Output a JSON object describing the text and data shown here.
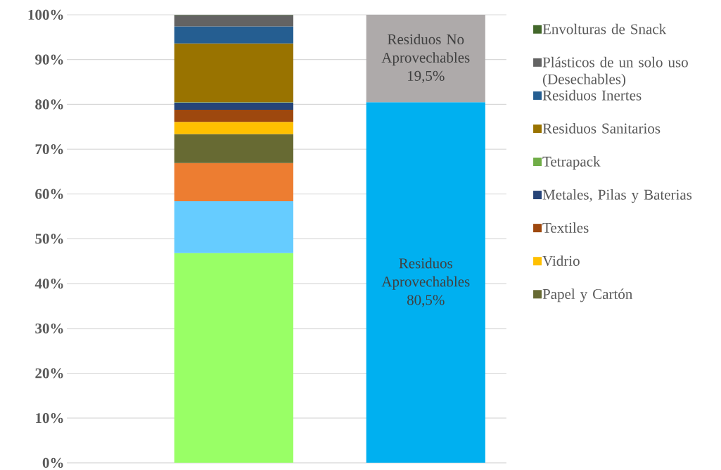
{
  "chart_data": {
    "type": "bar",
    "stacked": true,
    "categories": [
      null,
      null
    ],
    "series": [
      {
        "color": "#99ff66",
        "values": [
          46.8,
          null
        ]
      },
      {
        "color": "#66ccff",
        "values": [
          11.6,
          null
        ]
      },
      {
        "color": "#ed7d31",
        "values": [
          8.5,
          null
        ]
      },
      {
        "name": "Papel y Cartón",
        "color": "#676a33",
        "values": [
          6.5,
          null
        ]
      },
      {
        "name": "Vidrio",
        "color": "#ffc000",
        "values": [
          2.7,
          null
        ]
      },
      {
        "name": "Textiles",
        "color": "#9e480e",
        "values": [
          2.7,
          null
        ]
      },
      {
        "name": "Metales, Pilas y Baterias",
        "color": "#264478",
        "values": [
          1.6,
          null
        ]
      },
      {
        "name": "Tetrapack",
        "color": "#70ad47",
        "values": [
          0.1,
          null
        ]
      },
      {
        "name": "Residuos Sanitarios",
        "color": "#997300",
        "values": [
          13.1,
          null
        ]
      },
      {
        "name": "Residuos Inertes",
        "color": "#255e91",
        "values": [
          3.8,
          null
        ]
      },
      {
        "name": "Plásticos de un solo uso (Desechables)",
        "color": "#636363",
        "values": [
          2.5,
          null
        ]
      },
      {
        "name": "Envolturas de Snack",
        "color": "#43682b",
        "values": [
          0.1,
          null
        ]
      },
      {
        "name": "Residuos Aprovechables",
        "color": "#00b0f0",
        "values": [
          null,
          80.5
        ],
        "value_labels": [
          null,
          "80,5%"
        ]
      },
      {
        "name": "Residuos No Aprovechables",
        "color": "#aeaaaa",
        "values": [
          null,
          19.5
        ],
        "value_labels": [
          null,
          "19,5%"
        ]
      }
    ],
    "ylim": [
      0,
      100
    ],
    "yticks": [
      {
        "value": 0,
        "label": "0%"
      },
      {
        "value": 10,
        "label": "10%"
      },
      {
        "value": 20,
        "label": "20%"
      },
      {
        "value": 30,
        "label": "30%"
      },
      {
        "value": 40,
        "label": "40%"
      },
      {
        "value": 50,
        "label": "50%"
      },
      {
        "value": 60,
        "label": "60%"
      },
      {
        "value": 70,
        "label": "70%"
      },
      {
        "value": 80,
        "label": "80%"
      },
      {
        "value": 90,
        "label": "90%"
      },
      {
        "value": 100,
        "label": "100%"
      }
    ],
    "grid": "y",
    "legend": "right"
  }
}
